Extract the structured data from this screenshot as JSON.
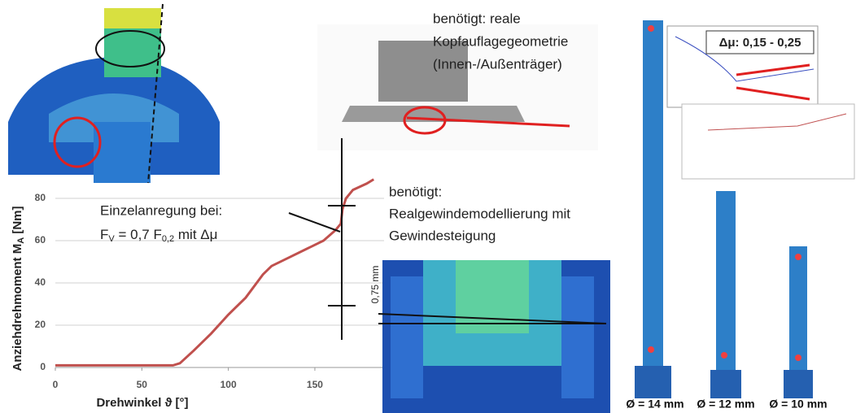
{
  "chart_data": {
    "type": "line",
    "y_label_parts": [
      "Anziehdrehmoment M",
      "A",
      " [Nm]"
    ],
    "x_label": "Drehwinkel ϑ [°]",
    "x": [
      0,
      68,
      72,
      80,
      90,
      100,
      110,
      120,
      125,
      135,
      145,
      155,
      162,
      165,
      166,
      168,
      172,
      180,
      184
    ],
    "series": [
      {
        "color": "#c0504d",
        "values": [
          1,
          1,
          2,
          8,
          16,
          25,
          33,
          44,
          48,
          52,
          56,
          60,
          65,
          68,
          75,
          80,
          84,
          87,
          89
        ]
      }
    ],
    "xlim": [
      0,
      190
    ],
    "ylim": [
      0,
      90
    ],
    "xticks": [
      0,
      50,
      100,
      150
    ],
    "yticks": [
      0,
      20,
      40,
      60,
      80
    ],
    "grid": true
  },
  "annotations": {
    "head_note": [
      "benötigt: reale",
      "Kopfauflagegeometrie",
      "(Innen-/Außenträger)"
    ],
    "excitation": {
      "line1": "Einzelanregung bei:",
      "line2": [
        "F",
        "V",
        " = 0,7 F",
        "0,2",
        " mit Δμ"
      ]
    },
    "thread_note": [
      "benötigt:",
      "Realgewindemodellierung mit",
      "Gewindesteigung"
    ],
    "pitch": "0,75 mm",
    "friction_range": "Δμ: 0,15 - 0,25",
    "diameters": [
      "Ø = 14 mm",
      "Ø = 12 mm",
      "Ø = 10 mm"
    ]
  }
}
